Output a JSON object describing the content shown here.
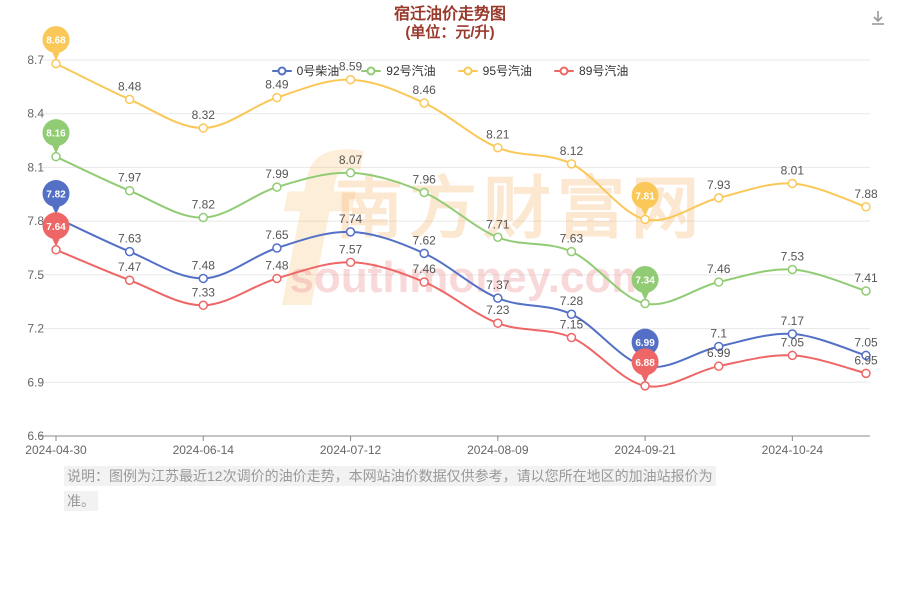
{
  "header": {
    "title": "宿迁油价走势图",
    "subtitle": "(单位：元/升)"
  },
  "colors": {
    "title_color": "#99392c",
    "axis_label": "#666666",
    "value_label": "#555555",
    "grid_line": "#e8e8e8",
    "axis_line": "#888888"
  },
  "watermark": {
    "logo": "f",
    "main": "南方财富网",
    "sub": "southmoney.com"
  },
  "note": {
    "text": "说明：图例为江苏最近12次调价的油价走势，本网站油价数据仅供参考，请以您所在地区的加油站报价为准。"
  },
  "chart_data": {
    "type": "line",
    "title": "宿迁油价走势图",
    "subtitle": "(单位：元/升)",
    "legend_position": "top",
    "grid": true,
    "ylim": [
      6.6,
      8.7
    ],
    "y_ticks": [
      6.6,
      6.9,
      7.2,
      7.5,
      7.8,
      8.1,
      8.4,
      8.7
    ],
    "categories": [
      "2024-04-30",
      "",
      "2024-06-14",
      "",
      "2024-07-12",
      "",
      "2024-08-09",
      "",
      "2024-09-21",
      "",
      "2024-10-24",
      ""
    ],
    "series": [
      {
        "name": "0号柴油",
        "color": "#5470c6",
        "marked": [
          0,
          8
        ],
        "values": [
          7.82,
          7.63,
          7.48,
          7.65,
          7.74,
          7.62,
          7.37,
          7.28,
          6.99,
          7.1,
          7.17,
          7.05
        ]
      },
      {
        "name": "92号汽油",
        "color": "#91cc75",
        "marked": [
          0,
          8
        ],
        "values": [
          8.16,
          7.97,
          7.82,
          7.99,
          8.07,
          7.96,
          7.71,
          7.63,
          7.34,
          7.46,
          7.53,
          7.41
        ]
      },
      {
        "name": "95号汽油",
        "color": "#fac858",
        "marked": [
          0,
          8
        ],
        "values": [
          8.68,
          8.48,
          8.32,
          8.49,
          8.59,
          8.46,
          8.21,
          8.12,
          7.81,
          7.93,
          8.01,
          7.88
        ]
      },
      {
        "name": "89号汽油",
        "color": "#ee6666",
        "marked": [
          0,
          8
        ],
        "values": [
          7.64,
          7.47,
          7.33,
          7.48,
          7.57,
          7.46,
          7.23,
          7.15,
          6.88,
          6.99,
          7.05,
          6.95
        ]
      }
    ]
  }
}
